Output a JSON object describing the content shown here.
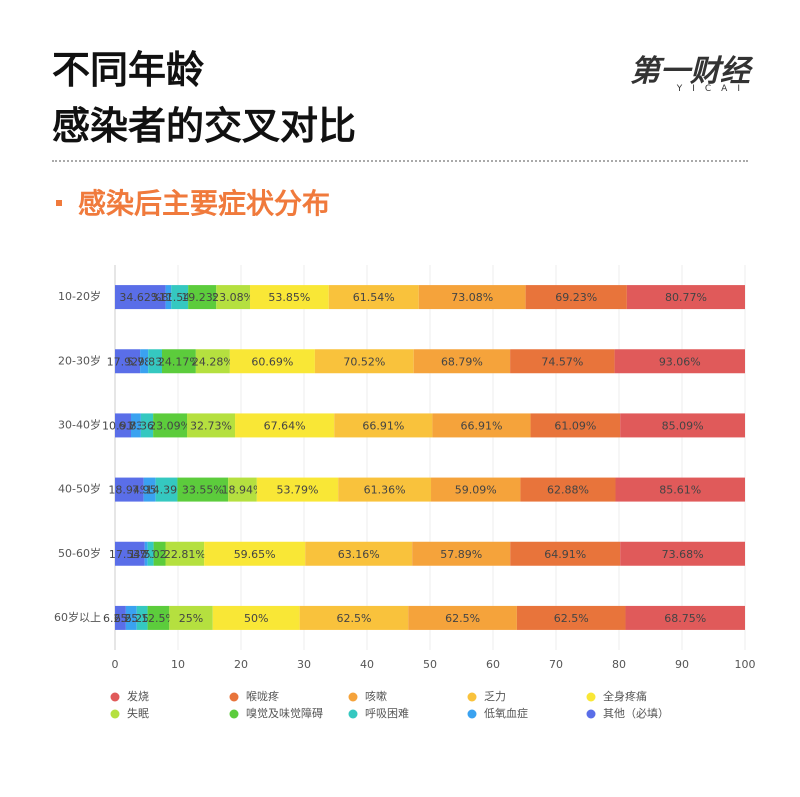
{
  "header": {
    "title_lines": [
      "不同年龄",
      "感染者的交叉对比"
    ],
    "logo": "第一财经",
    "logo_sub": "YICAI",
    "subtitle": "感染后主要症状分布"
  },
  "chart_data": {
    "type": "stacked-bar-horizontal",
    "stack": "percent",
    "categories": [
      "10-20岁",
      "20-30岁",
      "30-40岁",
      "40-50岁",
      "50-60岁",
      "60岁以上"
    ],
    "series": [
      {
        "name": "发烧",
        "color": "#e05a5a",
        "values": [
          80.77,
          93.06,
          85.09,
          85.61,
          73.68,
          68.75
        ],
        "value_labels": [
          "80.77%",
          "93.06%",
          "85.09%",
          "85.61%",
          "73.68%",
          "68.75%"
        ]
      },
      {
        "name": "喉咙疼",
        "color": "#e8743b",
        "values": [
          69.23,
          74.57,
          61.09,
          62.88,
          64.91,
          62.5
        ],
        "value_labels": [
          "69.23%",
          "74.57%",
          "61.09%",
          "62.88%",
          "64.91%",
          "62.5%"
        ]
      },
      {
        "name": "咳嗽",
        "color": "#f5a33b",
        "values": [
          73.08,
          68.79,
          66.91,
          59.09,
          57.89,
          62.5
        ],
        "value_labels": [
          "73.08%",
          "68.79%",
          "66.91%",
          "59.09%",
          "57.89%",
          "62.5%"
        ]
      },
      {
        "name": "乏力",
        "color": "#f9c23c",
        "values": [
          61.54,
          70.52,
          66.91,
          61.36,
          63.16,
          62.5
        ],
        "value_labels": [
          "61.54%",
          "70.52%",
          "66.91%",
          "61.36%",
          "63.16%",
          "62.5%"
        ]
      },
      {
        "name": "全身疼痛",
        "color": "#f9e736",
        "values": [
          53.85,
          60.69,
          67.64,
          53.79,
          59.65,
          50
        ],
        "value_labels": [
          "53.85%",
          "60.69%",
          "67.64%",
          "53.79%",
          "59.65%",
          "50%"
        ]
      },
      {
        "name": "失眠",
        "color": "#b5e03f",
        "values": [
          23.08,
          24.28,
          32.73,
          18.94,
          22.81,
          25
        ],
        "value_labels": [
          "23.08%",
          "24.28%",
          "32.73%",
          "18.94%",
          "22.81%",
          "25%"
        ]
      },
      {
        "name": "嗅觉及味觉障碍",
        "color": "#5ccc3c",
        "values": [
          19.23,
          24.17,
          23.09,
          33.55,
          7.02,
          12.5
        ],
        "value_labels": [
          "19.23%",
          "24.17%",
          "23.09%",
          "33.55%",
          "7.02%",
          "12.5%"
        ]
      },
      {
        "name": "呼吸困难",
        "color": "#35c8c0",
        "values": [
          11.54,
          9.83,
          8.36,
          14.39,
          3.51,
          6.25
        ],
        "value_labels": [
          "11.54%",
          "9.83%",
          "8.36%",
          "14.39%",
          "3.51%",
          "6.25%"
        ]
      },
      {
        "name": "低氧血症",
        "color": "#3aa2f0",
        "values": [
          3.85,
          5.78,
          6.73,
          7.95,
          1.75,
          6.25
        ],
        "value_labels": [
          "3.85%",
          "5.78%",
          "6.73%",
          "7.95%",
          "1.75%",
          "6.25%"
        ]
      },
      {
        "name": "其他（必填）",
        "color": "#5a6ee8",
        "values": [
          34.62,
          17.92,
          10.91,
          18.94,
          17.54,
          6.25
        ],
        "value_labels": [
          "34.62%",
          "17.92%",
          "10.91%",
          "18.94%",
          "17.54%",
          "6.25%"
        ]
      }
    ],
    "xlim": [
      0,
      100
    ],
    "xticks": [
      0,
      10,
      20,
      30,
      40,
      50,
      60,
      70,
      80,
      90,
      100
    ],
    "grid": true
  }
}
